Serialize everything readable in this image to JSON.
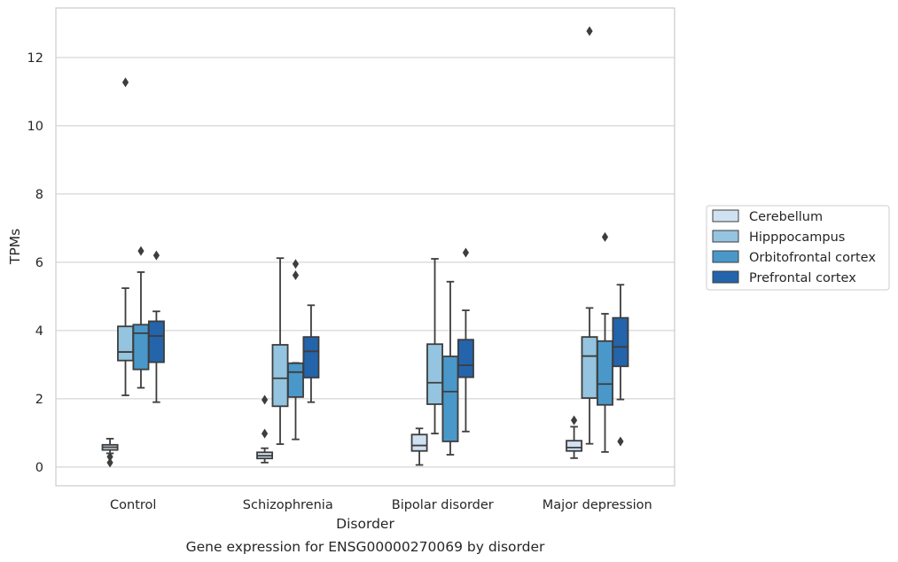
{
  "caption": "Gene expression for ENSG00000270069 by disorder",
  "chart_data": {
    "type": "box",
    "title": "",
    "xlabel": "Disorder",
    "ylabel": "TPMs",
    "ylim": [
      -0.55,
      13.45
    ],
    "yticks": [
      0,
      2,
      4,
      6,
      8,
      10,
      12
    ],
    "grid": "horizontal",
    "legend_position": "right",
    "categories": [
      "Control",
      "Schizophrenia",
      "Bipolar disorder",
      "Major depression"
    ],
    "series": [
      {
        "name": "Cerebellum",
        "color": "#d0e1f2",
        "boxes": [
          {
            "whislo": 0.4,
            "q1": 0.5,
            "med": 0.58,
            "q3": 0.65,
            "whishi": 0.83,
            "fliers": [
              0.3,
              0.13
            ]
          },
          {
            "whislo": 0.13,
            "q1": 0.25,
            "med": 0.33,
            "q3": 0.43,
            "whishi": 0.55,
            "fliers": [
              1.97,
              0.98
            ]
          },
          {
            "whislo": 0.06,
            "q1": 0.47,
            "med": 0.63,
            "q3": 0.95,
            "whishi": 1.13,
            "fliers": []
          },
          {
            "whislo": 0.26,
            "q1": 0.47,
            "med": 0.57,
            "q3": 0.77,
            "whishi": 1.18,
            "fliers": [
              1.37
            ]
          }
        ]
      },
      {
        "name": "Hipppocampus",
        "color": "#94c4df",
        "boxes": [
          {
            "whislo": 2.1,
            "q1": 3.12,
            "med": 3.37,
            "q3": 4.12,
            "whishi": 5.24,
            "fliers": [
              11.27
            ]
          },
          {
            "whislo": 0.67,
            "q1": 1.78,
            "med": 2.6,
            "q3": 3.58,
            "whishi": 6.12,
            "fliers": []
          },
          {
            "whislo": 0.98,
            "q1": 1.84,
            "med": 2.47,
            "q3": 3.6,
            "whishi": 6.1,
            "fliers": []
          },
          {
            "whislo": 0.68,
            "q1": 2.02,
            "med": 3.25,
            "q3": 3.81,
            "whishi": 4.66,
            "fliers": [
              12.77
            ]
          }
        ]
      },
      {
        "name": "Orbitofrontal cortex",
        "color": "#4a98c9",
        "boxes": [
          {
            "whislo": 2.32,
            "q1": 2.86,
            "med": 3.92,
            "q3": 4.17,
            "whishi": 5.71,
            "fliers": [
              6.33
            ]
          },
          {
            "whislo": 0.81,
            "q1": 2.05,
            "med": 2.78,
            "q3": 3.04,
            "whishi": 3.05,
            "fliers": [
              5.95,
              5.62
            ]
          },
          {
            "whislo": 0.36,
            "q1": 0.75,
            "med": 2.21,
            "q3": 3.24,
            "whishi": 5.43,
            "fliers": []
          },
          {
            "whislo": 0.44,
            "q1": 1.82,
            "med": 2.43,
            "q3": 3.69,
            "whishi": 4.49,
            "fliers": [
              6.74
            ]
          }
        ]
      },
      {
        "name": "Prefrontal cortex",
        "color": "#2464ab",
        "boxes": [
          {
            "whislo": 1.9,
            "q1": 3.07,
            "med": 3.84,
            "q3": 4.27,
            "whishi": 4.56,
            "fliers": [
              6.2
            ]
          },
          {
            "whislo": 1.9,
            "q1": 2.62,
            "med": 3.39,
            "q3": 3.81,
            "whishi": 4.74,
            "fliers": []
          },
          {
            "whislo": 1.04,
            "q1": 2.63,
            "med": 2.98,
            "q3": 3.73,
            "whishi": 4.59,
            "fliers": [
              6.28
            ]
          },
          {
            "whislo": 1.98,
            "q1": 2.95,
            "med": 3.52,
            "q3": 4.37,
            "whishi": 5.34,
            "fliers": [
              0.75
            ]
          }
        ]
      }
    ]
  }
}
